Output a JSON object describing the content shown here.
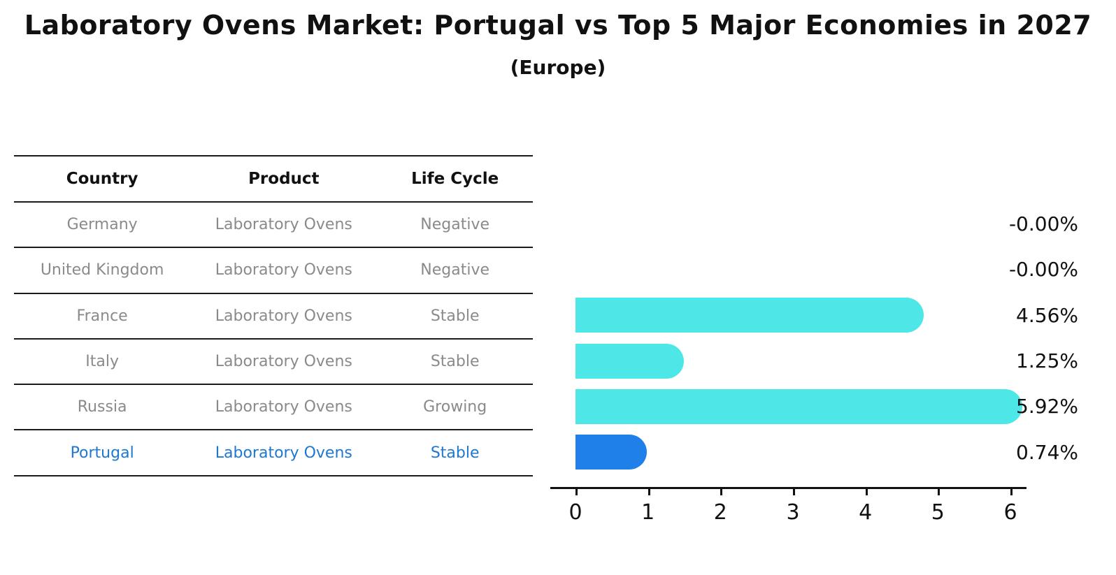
{
  "title": "Laboratory Ovens Market: Portugal vs Top 5 Major Economies in 2027",
  "subtitle": "(Europe)",
  "table": {
    "headers": [
      "Country",
      "Product",
      "Life Cycle"
    ],
    "rows": [
      {
        "country": "Germany",
        "product": "Laboratory Ovens",
        "life_cycle": "Negative",
        "highlight": false
      },
      {
        "country": "United Kingdom",
        "product": "Laboratory Ovens",
        "life_cycle": "Negative",
        "highlight": false
      },
      {
        "country": "France",
        "product": "Laboratory Ovens",
        "life_cycle": "Stable",
        "highlight": false
      },
      {
        "country": "Italy",
        "product": "Laboratory Ovens",
        "life_cycle": "Stable",
        "highlight": false
      },
      {
        "country": "Russia",
        "product": "Laboratory Ovens",
        "life_cycle": "Growing",
        "highlight": false
      },
      {
        "country": "Portugal",
        "product": "Laboratory Ovens",
        "life_cycle": "Stable",
        "highlight": true
      }
    ]
  },
  "chart_data": {
    "type": "bar",
    "orientation": "horizontal",
    "title": "Laboratory Ovens Market: Portugal vs Top 5 Major Economies in 2027",
    "subtitle": "(Europe)",
    "categories": [
      "Germany",
      "United Kingdom",
      "France",
      "Italy",
      "Russia",
      "Portugal"
    ],
    "values": [
      0.0,
      0.0,
      4.56,
      1.25,
      5.92,
      0.74
    ],
    "value_labels": [
      "-0.00%",
      "-0.00%",
      "4.56%",
      "1.25%",
      "5.92%",
      "0.74%"
    ],
    "highlight_index": 5,
    "xlabel": "",
    "ylabel": "",
    "xlim": [
      0,
      6
    ],
    "x_ticks": [
      0,
      1,
      2,
      3,
      4,
      5,
      6
    ],
    "grid": false,
    "legend": false,
    "bar_color": "#4DE7E7",
    "highlight_bar_color": "#1E80E8",
    "highlight_text_color": "#1E78D2",
    "text_color": "#8a8a8a"
  }
}
